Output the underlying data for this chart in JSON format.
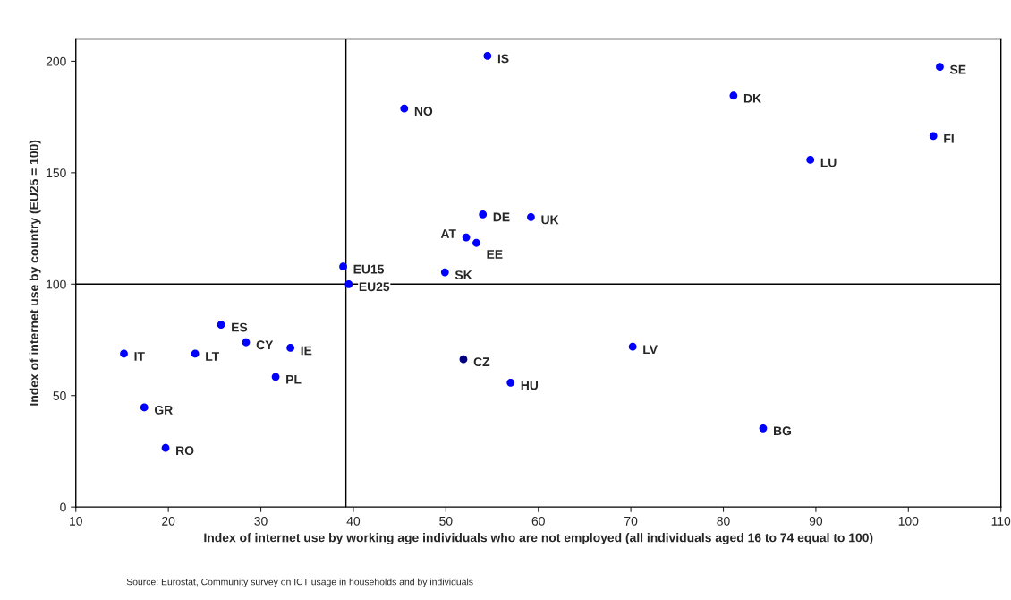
{
  "chart_data": {
    "type": "scatter",
    "xlabel": "Index of internet use by working age individuals who are not employed (all individuals aged 16 to 74 equal to 100)",
    "ylabel": "Index of internet use by country (EU25 = 100)",
    "x": [
      54.5,
      103.4,
      81.1,
      45.5,
      102.7,
      89.4,
      54.0,
      59.2,
      52.2,
      53.3,
      38.9,
      49.9,
      39.5,
      25.7,
      28.4,
      33.2,
      15.2,
      22.9,
      70.2,
      51.9,
      31.6,
      57.0,
      17.4,
      19.7,
      84.3
    ],
    "values": [
      202.4,
      197.5,
      184.6,
      178.8,
      166.5,
      155.8,
      131.3,
      130.1,
      121.0,
      118.5,
      107.9,
      105.3,
      100.0,
      81.8,
      73.9,
      71.4,
      68.8,
      68.8,
      71.9,
      66.3,
      58.4,
      55.8,
      44.7,
      26.5,
      35.3
    ],
    "colors": [
      "#0000ff",
      "#0000ff",
      "#0000ff",
      "#0000ff",
      "#0000ff",
      "#0000ff",
      "#0000ff",
      "#0000ff",
      "#0000ff",
      "#0000ff",
      "#0000ff",
      "#0000ff",
      "#0000ff",
      "#0000ff",
      "#0000ff",
      "#0000ff",
      "#0000ff",
      "#0000ff",
      "#0000ff",
      "#000080",
      "#0000ff",
      "#0000ff",
      "#0000ff",
      "#0000ff",
      "#0000ff"
    ],
    "marker": "circle",
    "xlim": [
      10,
      110
    ],
    "xticks": [
      10,
      20,
      30,
      40,
      50,
      60,
      70,
      80,
      90,
      100,
      110
    ],
    "ylim": [
      0,
      210
    ],
    "yticks": [
      0,
      50,
      100,
      150,
      200
    ],
    "grid": false,
    "ref_lines": [
      {
        "axis": "x",
        "value": 39.2,
        "color": "#000000"
      },
      {
        "axis": "y",
        "value": 100,
        "color": "#000000"
      }
    ],
    "annotations": [
      {
        "text": "IS",
        "x": 54.5,
        "y": 202.4
      },
      {
        "text": "SE",
        "x": 103.4,
        "y": 197.5
      },
      {
        "text": "DK",
        "x": 81.1,
        "y": 184.6
      },
      {
        "text": "NO",
        "x": 45.5,
        "y": 178.8
      },
      {
        "text": "FI",
        "x": 102.7,
        "y": 166.5
      },
      {
        "text": "LU",
        "x": 89.4,
        "y": 155.8
      },
      {
        "text": "DE",
        "x": 54.0,
        "y": 131.3
      },
      {
        "text": "UK",
        "x": 59.2,
        "y": 130.1
      },
      {
        "text": "AT",
        "x": 52.2,
        "y": 121.0
      },
      {
        "text": "EE",
        "x": 53.3,
        "y": 118.5
      },
      {
        "text": "EU15",
        "x": 38.9,
        "y": 107.9
      },
      {
        "text": "SK",
        "x": 49.9,
        "y": 105.3
      },
      {
        "text": "EU25",
        "x": 39.5,
        "y": 100.0
      },
      {
        "text": "ES",
        "x": 25.7,
        "y": 81.8
      },
      {
        "text": "CY",
        "x": 28.4,
        "y": 73.9
      },
      {
        "text": "IE",
        "x": 33.2,
        "y": 71.4
      },
      {
        "text": "IT",
        "x": 15.2,
        "y": 68.8
      },
      {
        "text": "LT",
        "x": 22.9,
        "y": 68.8
      },
      {
        "text": "LV",
        "x": 70.2,
        "y": 71.9
      },
      {
        "text": "CZ",
        "x": 51.9,
        "y": 66.3
      },
      {
        "text": "PL",
        "x": 31.6,
        "y": 58.4
      },
      {
        "text": "HU",
        "x": 57.0,
        "y": 55.8
      },
      {
        "text": "GR",
        "x": 17.4,
        "y": 44.7
      },
      {
        "text": "RO",
        "x": 19.7,
        "y": 26.5
      },
      {
        "text": "BG",
        "x": 84.3,
        "y": 35.3
      },
      "Source: Eurostat, Community survey on ICT usage in households and by individuals"
    ]
  }
}
